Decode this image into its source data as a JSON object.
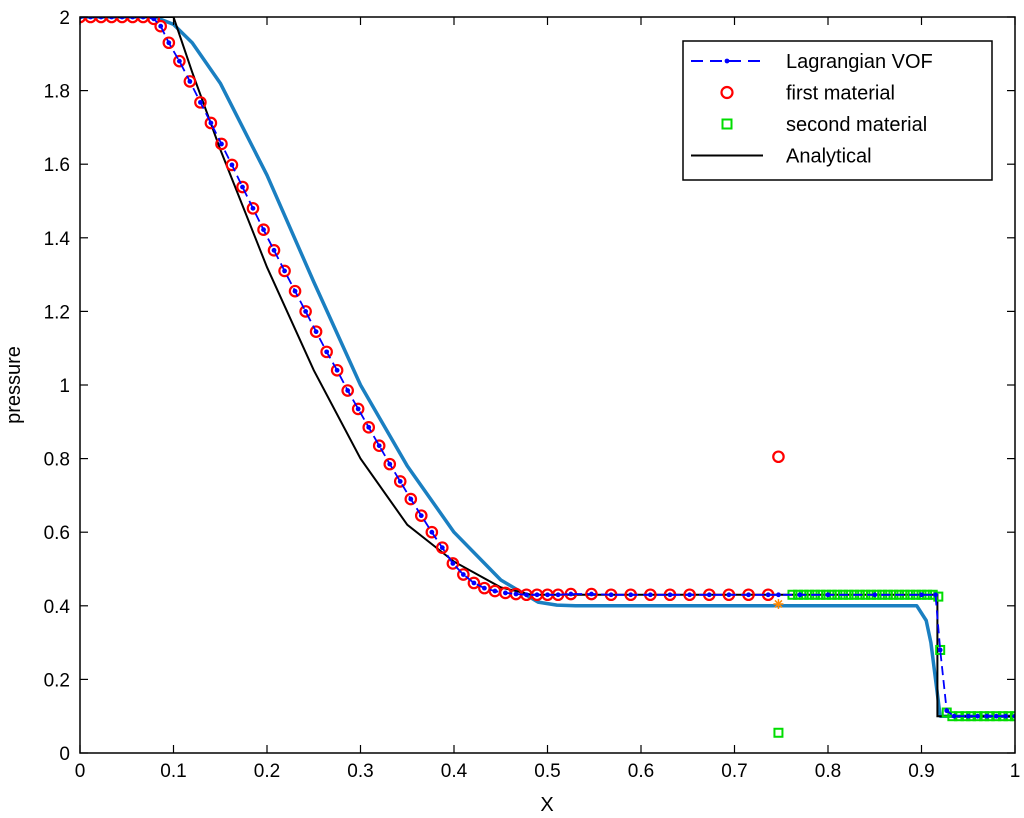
{
  "chart_data": {
    "type": "line",
    "title": "",
    "xlabel": "X",
    "ylabel": "pressure",
    "xlim": [
      0,
      1
    ],
    "ylim": [
      0,
      2
    ],
    "xticks": [
      "0",
      "0.1",
      "0.2",
      "0.3",
      "0.4",
      "0.5",
      "0.6",
      "0.7",
      "0.8",
      "0.9",
      "1"
    ],
    "yticks": [
      "0",
      "0.2",
      "0.4",
      "0.6",
      "0.8",
      "1",
      "1.2",
      "1.4",
      "1.6",
      "1.8",
      "2"
    ],
    "grid": false,
    "legend_position": "top-right",
    "series": [
      {
        "name": "Lagrangian VOF",
        "style": "dashed-dot-markers",
        "color": "#0000ff",
        "x": [
          0.0,
          0.0113,
          0.0225,
          0.0338,
          0.045,
          0.0563,
          0.0675,
          0.0788,
          0.0863,
          0.095,
          0.1063,
          0.1175,
          0.1288,
          0.14,
          0.1513,
          0.1625,
          0.1738,
          0.185,
          0.1963,
          0.2075,
          0.2188,
          0.23,
          0.2413,
          0.2525,
          0.2638,
          0.275,
          0.2863,
          0.2975,
          0.3088,
          0.32,
          0.3313,
          0.3425,
          0.3538,
          0.365,
          0.3763,
          0.3875,
          0.3988,
          0.41,
          0.4213,
          0.4325,
          0.4438,
          0.455,
          0.4663,
          0.4775,
          0.4888,
          0.5,
          0.5113,
          0.525,
          0.547,
          0.568,
          0.589,
          0.61,
          0.631,
          0.652,
          0.673,
          0.694,
          0.715,
          0.736,
          0.747,
          0.77,
          0.8,
          0.85,
          0.9,
          0.915,
          0.92,
          0.927,
          0.935,
          0.95,
          0.96,
          0.97,
          0.98,
          0.99,
          1.0
        ],
        "y": [
          2.0,
          2.0,
          2.0,
          2.0,
          2.0,
          2.0,
          2.0,
          1.995,
          1.975,
          1.93,
          1.88,
          1.825,
          1.768,
          1.712,
          1.655,
          1.598,
          1.538,
          1.48,
          1.422,
          1.366,
          1.31,
          1.255,
          1.2,
          1.145,
          1.09,
          1.04,
          0.985,
          0.935,
          0.885,
          0.835,
          0.785,
          0.738,
          0.69,
          0.645,
          0.6,
          0.558,
          0.515,
          0.485,
          0.462,
          0.448,
          0.44,
          0.435,
          0.432,
          0.43,
          0.43,
          0.43,
          0.43,
          0.432,
          0.432,
          0.43,
          0.43,
          0.43,
          0.43,
          0.43,
          0.43,
          0.43,
          0.43,
          0.43,
          0.43,
          0.43,
          0.43,
          0.43,
          0.43,
          0.43,
          0.28,
          0.115,
          0.1,
          0.1,
          0.1,
          0.1,
          0.1,
          0.1,
          0.1
        ]
      },
      {
        "name": "first material",
        "style": "open-circle",
        "color": "#ff0000",
        "x": [
          0.0,
          0.0113,
          0.0225,
          0.0338,
          0.045,
          0.0563,
          0.0675,
          0.0788,
          0.0863,
          0.095,
          0.1063,
          0.1175,
          0.1288,
          0.14,
          0.1513,
          0.1625,
          0.1738,
          0.185,
          0.1963,
          0.2075,
          0.2188,
          0.23,
          0.2413,
          0.2525,
          0.2638,
          0.275,
          0.2863,
          0.2975,
          0.3088,
          0.32,
          0.3313,
          0.3425,
          0.3538,
          0.365,
          0.3763,
          0.3875,
          0.3988,
          0.41,
          0.4213,
          0.4325,
          0.4438,
          0.455,
          0.4663,
          0.4775,
          0.4888,
          0.5,
          0.5113,
          0.525,
          0.547,
          0.568,
          0.589,
          0.61,
          0.631,
          0.652,
          0.673,
          0.694,
          0.715,
          0.736,
          0.747
        ],
        "y": [
          2.0,
          2.0,
          2.0,
          2.0,
          2.0,
          2.0,
          2.0,
          1.995,
          1.975,
          1.93,
          1.88,
          1.825,
          1.768,
          1.712,
          1.655,
          1.598,
          1.538,
          1.48,
          1.422,
          1.366,
          1.31,
          1.255,
          1.2,
          1.145,
          1.09,
          1.04,
          0.985,
          0.935,
          0.885,
          0.835,
          0.785,
          0.738,
          0.69,
          0.645,
          0.6,
          0.558,
          0.515,
          0.485,
          0.462,
          0.448,
          0.44,
          0.435,
          0.432,
          0.43,
          0.43,
          0.43,
          0.43,
          0.432,
          0.432,
          0.43,
          0.43,
          0.43,
          0.43,
          0.43,
          0.43,
          0.43,
          0.43,
          0.43,
          0.805
        ]
      },
      {
        "name": "second material",
        "style": "open-square",
        "color": "#00dd00",
        "x": [
          0.747,
          0.762,
          0.768,
          0.774,
          0.78,
          0.786,
          0.792,
          0.798,
          0.804,
          0.81,
          0.816,
          0.822,
          0.828,
          0.834,
          0.84,
          0.846,
          0.852,
          0.858,
          0.864,
          0.87,
          0.876,
          0.882,
          0.888,
          0.894,
          0.9,
          0.906,
          0.912,
          0.918,
          0.92,
          0.927,
          0.933,
          0.94,
          0.947,
          0.953,
          0.96,
          0.967,
          0.973,
          0.98,
          0.987,
          0.993,
          1.0
        ],
        "y": [
          0.055,
          0.43,
          0.43,
          0.43,
          0.43,
          0.43,
          0.43,
          0.43,
          0.43,
          0.43,
          0.43,
          0.43,
          0.43,
          0.43,
          0.43,
          0.43,
          0.43,
          0.43,
          0.43,
          0.43,
          0.43,
          0.43,
          0.43,
          0.43,
          0.43,
          0.43,
          0.43,
          0.425,
          0.28,
          0.11,
          0.1,
          0.1,
          0.1,
          0.1,
          0.1,
          0.1,
          0.1,
          0.1,
          0.1,
          0.1,
          0.1
        ]
      },
      {
        "name": "Analytical",
        "style": "solid",
        "color": "#000000",
        "x": [
          0.0,
          0.0,
          0.1,
          0.12,
          0.15,
          0.2,
          0.25,
          0.3,
          0.35,
          0.4,
          0.45,
          0.483,
          0.917,
          0.917,
          1.0
        ],
        "y": [
          2.0,
          2.0,
          2.0,
          1.85,
          1.64,
          1.32,
          1.04,
          0.8,
          0.62,
          0.52,
          0.45,
          0.43,
          0.43,
          0.1,
          0.1
        ]
      },
      {
        "name": "",
        "style": "solid-thick",
        "color": "#1a7fc1",
        "x": [
          0.0,
          0.08,
          0.1,
          0.12,
          0.15,
          0.2,
          0.25,
          0.3,
          0.35,
          0.4,
          0.45,
          0.49,
          0.51,
          0.53,
          0.6,
          0.7,
          0.8,
          0.88,
          0.895,
          0.905,
          0.91,
          0.92,
          0.925,
          1.0
        ],
        "y": [
          2.0,
          2.0,
          1.98,
          1.93,
          1.82,
          1.57,
          1.28,
          1.0,
          0.78,
          0.6,
          0.47,
          0.41,
          0.402,
          0.4,
          0.4,
          0.4,
          0.4,
          0.4,
          0.4,
          0.36,
          0.3,
          0.1,
          0.1,
          0.1
        ]
      }
    ],
    "annotations": [
      {
        "x": 0.747,
        "y": 0.405,
        "marker": "star",
        "color": "#ff8800"
      }
    ]
  }
}
